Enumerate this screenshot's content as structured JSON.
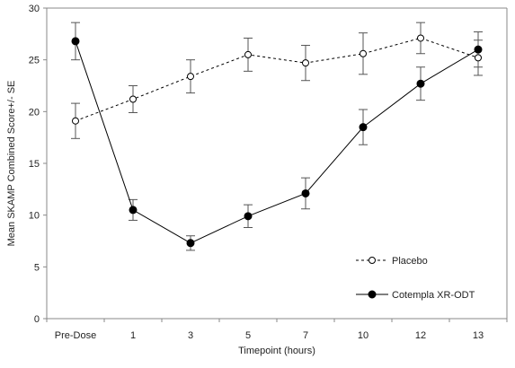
{
  "chart_data": {
    "type": "line",
    "xlabel": "Timepoint (hours)",
    "ylabel": "Mean SKAMP Combined Score+/- SE",
    "categories": [
      "Pre-Dose",
      "1",
      "3",
      "5",
      "7",
      "10",
      "12",
      "13"
    ],
    "ylim": [
      0,
      30
    ],
    "yticks": [
      0,
      5,
      10,
      15,
      20,
      25,
      30
    ],
    "grid": false,
    "legend_position": "right",
    "series": [
      {
        "name": "Placebo",
        "line_style": "dashed",
        "marker": "open-circle",
        "values": [
          19.1,
          21.2,
          23.4,
          25.5,
          24.7,
          25.6,
          27.1,
          25.2
        ],
        "se": [
          1.7,
          1.3,
          1.6,
          1.6,
          1.7,
          2.0,
          1.5,
          1.7
        ]
      },
      {
        "name": "Cotempla XR-ODT",
        "line_style": "solid",
        "marker": "filled-circle",
        "values": [
          26.8,
          10.5,
          7.3,
          9.9,
          12.1,
          18.5,
          22.7,
          26.0
        ],
        "se": [
          1.8,
          1.0,
          0.7,
          1.1,
          1.5,
          1.7,
          1.6,
          1.7
        ]
      }
    ],
    "colors": {
      "line": "#000000",
      "errorbar": "#555555",
      "axis": "#888888"
    }
  }
}
